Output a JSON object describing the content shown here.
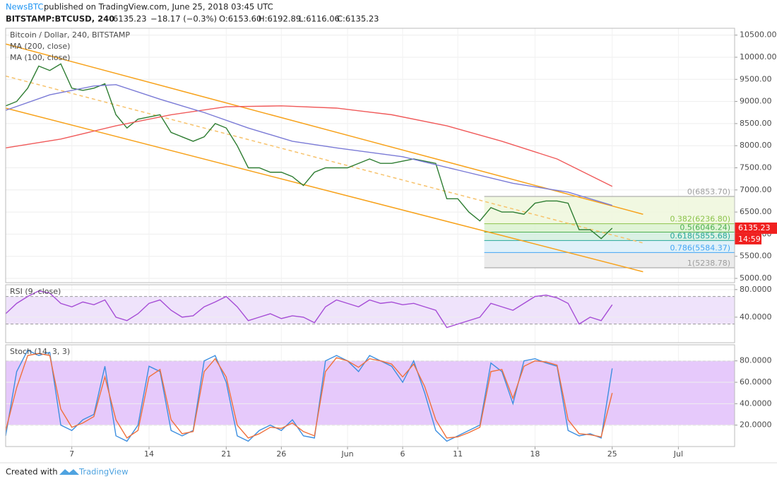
{
  "header": {
    "publisher": "NewsBTC",
    "published": "published on TradingView.com, June 25, 2018 03:45 UTC",
    "symbol": "BITSTAMP:BTCUSD, 240",
    "quote": "6135.23",
    "change": "−18.17 (−0.3%)",
    "open": "O:6153.60",
    "high": "H:6192.89",
    "low": "L:6116.06",
    "close": "C:6135.23"
  },
  "footer": {
    "created": "Created with",
    "brand": "TradingView"
  },
  "chart_data": [
    {
      "type": "line",
      "title": "Bitcoin / Dollar, 240, BITSTAMP",
      "xlim": [
        0,
        66.1
      ],
      "xticks": [
        {
          "value": 6,
          "label": "7"
        },
        {
          "value": 13,
          "label": "14"
        },
        {
          "value": 20,
          "label": "21"
        },
        {
          "value": 25,
          "label": "26"
        },
        {
          "value": 31,
          "label": "Jun"
        },
        {
          "value": 36,
          "label": "6"
        },
        {
          "value": 41,
          "label": "11"
        },
        {
          "value": 48,
          "label": "18"
        },
        {
          "value": 55,
          "label": "25"
        },
        {
          "value": 61,
          "label": "Jul"
        }
      ],
      "ylim": [
        4904,
        10655
      ],
      "yticks": [
        {
          "value": 5000,
          "label": "5000.00"
        },
        {
          "value": 5500,
          "label": "5500.00"
        },
        {
          "value": 6000,
          "label": "6000.00"
        },
        {
          "value": 6500,
          "label": "6500.00"
        },
        {
          "value": 7000,
          "label": "7000.00"
        },
        {
          "value": 7500,
          "label": "7500.00"
        },
        {
          "value": 8000,
          "label": "8000.00"
        },
        {
          "value": 8500,
          "label": "8500.00"
        },
        {
          "value": 9000,
          "label": "9000.00"
        },
        {
          "value": 9500,
          "label": "9500.00"
        },
        {
          "value": 10000,
          "label": "10000.00"
        },
        {
          "value": 10500,
          "label": "10500.00"
        }
      ],
      "series": [
        {
          "color": "#2e7d32",
          "x": [
            0,
            1,
            2,
            3,
            4,
            5,
            6,
            7,
            8,
            9,
            10,
            11,
            12,
            13,
            14,
            15,
            16,
            17,
            18,
            19,
            20,
            21,
            22,
            23,
            24,
            25,
            26,
            27,
            28,
            29,
            30,
            31,
            32,
            33,
            34,
            35,
            36,
            37,
            38,
            39,
            40,
            41,
            42,
            43,
            44,
            45,
            46,
            47,
            48,
            49,
            50,
            51,
            52,
            53,
            54,
            55
          ],
          "values": [
            8900,
            9000,
            9300,
            9800,
            9700,
            9850,
            9300,
            9250,
            9300,
            9400,
            8700,
            8400,
            8600,
            8650,
            8700,
            8300,
            8200,
            8100,
            8200,
            8500,
            8400,
            8000,
            7500,
            7500,
            7400,
            7400,
            7300,
            7100,
            7400,
            7500,
            7500,
            7500,
            7600,
            7700,
            7600,
            7600,
            7650,
            7700,
            7650,
            7600,
            6800,
            6800,
            6500,
            6300,
            6600,
            6500,
            6500,
            6450,
            6700,
            6750,
            6750,
            6700,
            6100,
            6100,
            5900,
            6135.23
          ]
        },
        {
          "name": "MA (200, close)",
          "color": "#f05a5a",
          "x": [
            0,
            5,
            10,
            15,
            20,
            25,
            30,
            35,
            40,
            45,
            50,
            55
          ],
          "values": [
            7950,
            8150,
            8450,
            8700,
            8880,
            8900,
            8850,
            8700,
            8450,
            8100,
            7700,
            7080
          ]
        },
        {
          "name": "MA (100, close)",
          "color": "#7a7ad6",
          "x": [
            0,
            4,
            8,
            10,
            14,
            18,
            22,
            26,
            30,
            36,
            41,
            46,
            51,
            55
          ],
          "values": [
            8800,
            9150,
            9350,
            9380,
            9050,
            8750,
            8400,
            8100,
            7950,
            7750,
            7450,
            7150,
            6950,
            6650
          ]
        }
      ],
      "trendlines": [
        {
          "color": "#f7a21b",
          "x": [
            0,
            57.8
          ],
          "values": [
            10300,
            6450
          ]
        },
        {
          "color": "#f7a21b",
          "x": [
            0,
            57.8
          ],
          "values": [
            8850,
            5150
          ]
        },
        {
          "color": "#f7c26b",
          "dashed": true,
          "x": [
            0,
            57.8
          ],
          "values": [
            9575,
            5800
          ]
        }
      ],
      "fib": {
        "x": [
          43.4,
          66.1
        ],
        "levels": [
          {
            "value": 6853.7,
            "label": "0(6853.70)"
          },
          {
            "value": 6236.8,
            "label": "0.382(6236.80)"
          },
          {
            "value": 6046.24,
            "label": "0.5(6046.24)"
          },
          {
            "value": 5855.68,
            "label": "0.618(5855.68)"
          },
          {
            "value": 5584.37,
            "label": "0.786(5584.37)"
          },
          {
            "value": 5238.78,
            "label": "1(5238.78)"
          }
        ],
        "colors": [
          "#9e9e9e",
          "#8bc34a",
          "#4caf50",
          "#26a69a",
          "#42a5f5",
          "#9e9e9e"
        ],
        "zones": [
          "#eef7dc",
          "#daf2cf",
          "#d4efdf",
          "#dbeef8",
          "#e8e8e8"
        ]
      },
      "last_price": {
        "value": 6135.23,
        "label": "6135.23"
      },
      "countdown": "14:59"
    },
    {
      "type": "line",
      "title": "RSI (9, close)",
      "xlim": [
        0,
        66.1
      ],
      "ylim": [
        3,
        87
      ],
      "band": [
        70,
        30
      ],
      "band_color": "#efe3fb",
      "yticks": [
        {
          "value": 40,
          "label": "40.0000"
        },
        {
          "value": 80,
          "label": "80.0000"
        }
      ],
      "series": [
        {
          "color": "#a64dd6",
          "values": [
            45,
            60,
            70,
            78,
            75,
            60,
            55,
            62,
            58,
            65,
            40,
            35,
            45,
            60,
            65,
            50,
            40,
            42,
            55,
            62,
            70,
            55,
            35,
            40,
            45,
            38,
            42,
            40,
            32,
            55,
            65,
            60,
            55,
            65,
            60,
            62,
            58,
            60,
            55,
            50,
            25,
            30,
            35,
            40,
            60,
            55,
            50,
            60,
            70,
            72,
            68,
            60,
            30,
            40,
            35,
            58
          ]
        }
      ]
    },
    {
      "type": "line",
      "title": "Stoch (14, 3, 3)",
      "xlim": [
        0,
        66.1
      ],
      "ylim": [
        0,
        95
      ],
      "band": [
        80,
        20
      ],
      "band_color": "#e6c9fb",
      "yticks": [
        {
          "value": 20,
          "label": "20.0000"
        },
        {
          "value": 40,
          "label": "40.0000"
        },
        {
          "value": 60,
          "label": "60.0000"
        },
        {
          "value": 80,
          "label": "80.0000"
        }
      ],
      "series": [
        {
          "color": "#3d8fe0",
          "values": [
            10,
            70,
            90,
            85,
            88,
            20,
            15,
            25,
            30,
            75,
            10,
            5,
            20,
            75,
            70,
            15,
            10,
            15,
            80,
            85,
            60,
            10,
            5,
            15,
            20,
            15,
            25,
            10,
            8,
            80,
            85,
            80,
            70,
            85,
            80,
            75,
            60,
            80,
            50,
            15,
            5,
            10,
            15,
            20,
            78,
            70,
            40,
            80,
            82,
            78,
            75,
            15,
            10,
            12,
            8,
            73
          ]
        },
        {
          "color": "#f0703c",
          "values": [
            15,
            55,
            85,
            87,
            85,
            35,
            18,
            22,
            28,
            65,
            25,
            8,
            15,
            65,
            72,
            25,
            12,
            14,
            70,
            82,
            65,
            20,
            8,
            12,
            18,
            17,
            22,
            14,
            10,
            70,
            83,
            80,
            74,
            82,
            80,
            77,
            65,
            77,
            56,
            25,
            8,
            9,
            13,
            18,
            70,
            72,
            45,
            75,
            80,
            79,
            76,
            25,
            12,
            11,
            9,
            50
          ]
        }
      ]
    }
  ]
}
